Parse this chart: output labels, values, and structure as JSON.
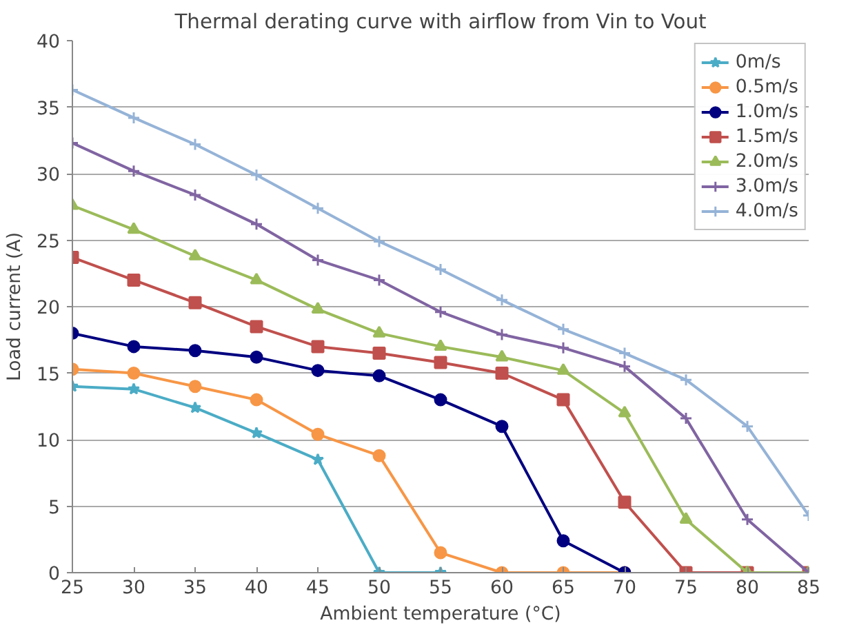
{
  "chart_data": {
    "type": "line",
    "title": "Thermal derating curve with airflow from Vin to Vout",
    "xlabel": "Ambient temperature (°C)",
    "ylabel": "Load current (A)",
    "x": [
      25,
      30,
      35,
      40,
      45,
      50,
      55,
      60,
      65,
      70,
      75,
      80,
      85
    ],
    "series": [
      {
        "name": "0m/s",
        "color": "#4bacc6",
        "marker": "star",
        "values": [
          14,
          13.8,
          12.4,
          10.5,
          8.5,
          0,
          0,
          null,
          null,
          null,
          null,
          null,
          null
        ]
      },
      {
        "name": "0.5m/s",
        "color": "#f79646",
        "marker": "circle",
        "values": [
          15.3,
          15,
          14,
          13,
          10.4,
          8.8,
          1.5,
          0,
          0,
          0,
          null,
          null,
          null
        ]
      },
      {
        "name": "1.0m/s",
        "color": "#000080",
        "marker": "circle",
        "values": [
          18,
          17,
          16.7,
          16.2,
          15.2,
          14.8,
          13,
          11,
          2.4,
          0,
          null,
          null,
          null
        ]
      },
      {
        "name": "1.5m/s",
        "color": "#c0504d",
        "marker": "square",
        "values": [
          23.7,
          22,
          20.3,
          18.5,
          17,
          16.5,
          15.8,
          15,
          13,
          5.3,
          0,
          0,
          0
        ]
      },
      {
        "name": "2.0m/s",
        "color": "#9bbb59",
        "marker": "triangle",
        "values": [
          27.6,
          25.8,
          23.8,
          22,
          19.8,
          18,
          17,
          16.2,
          15.2,
          12,
          4,
          0,
          0
        ]
      },
      {
        "name": "3.0m/s",
        "color": "#8064a2",
        "marker": "cross",
        "values": [
          32.3,
          30.2,
          28.4,
          26.2,
          23.5,
          22,
          19.6,
          17.9,
          16.9,
          15.5,
          11.6,
          4,
          0
        ]
      },
      {
        "name": "4.0m/s",
        "color": "#95b3d7",
        "marker": "cross",
        "values": [
          36.3,
          34.2,
          32.2,
          29.9,
          27.4,
          24.9,
          22.8,
          20.5,
          18.3,
          16.5,
          14.5,
          11,
          4.3
        ]
      }
    ],
    "xlim": [
      25,
      85
    ],
    "xticks": [
      25,
      30,
      35,
      40,
      45,
      50,
      55,
      60,
      65,
      70,
      75,
      80,
      85
    ],
    "ylim": [
      0,
      40
    ],
    "yticks": [
      0,
      5,
      10,
      15,
      20,
      25,
      30,
      35,
      40
    ],
    "grid": "y",
    "legend": "top right",
    "line_style": "solid"
  }
}
